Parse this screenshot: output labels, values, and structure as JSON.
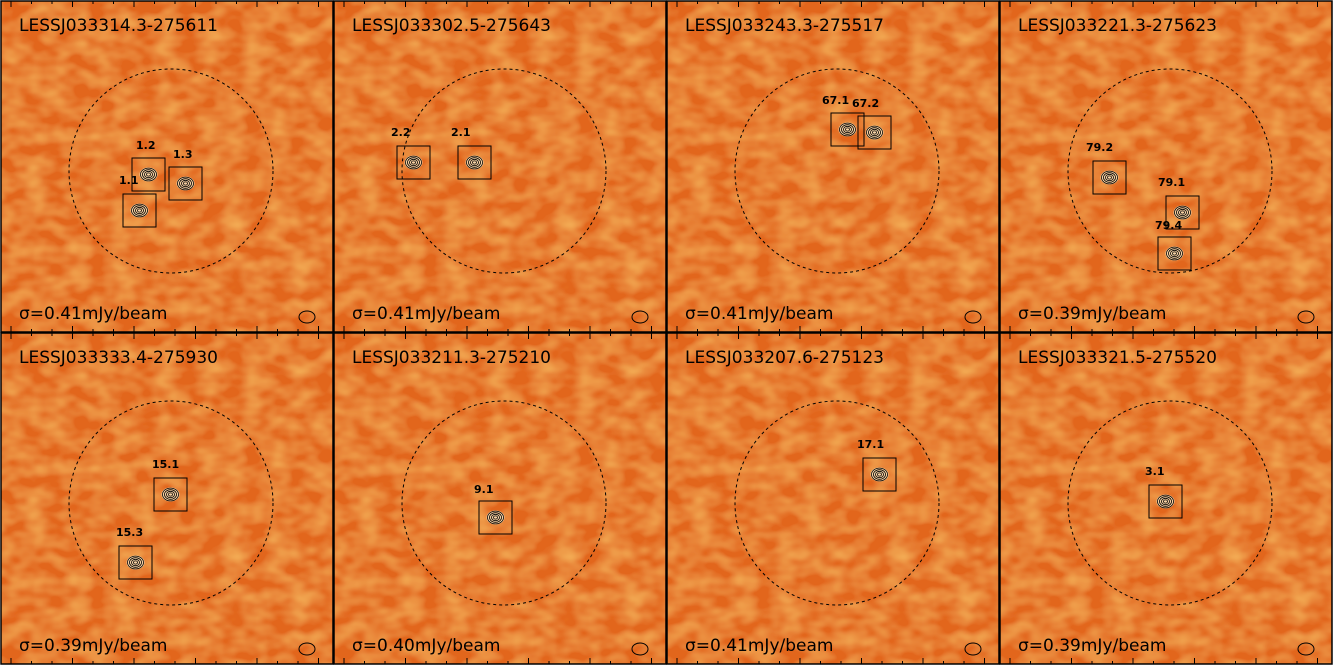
{
  "panels": [
    {
      "title": "LESSJ033314.3-275611",
      "sigma": "σ=0.41mJy/beam",
      "sources": [
        "1.2",
        "1.3",
        "1.1"
      ]
    },
    {
      "title": "LESSJ033302.5-275643",
      "sigma": "σ=0.41mJy/beam",
      "sources": [
        "2.2",
        "2.1"
      ]
    },
    {
      "title": "LESSJ033243.3-275517",
      "sigma": "σ=0.41mJy/beam",
      "sources": [
        "67.1",
        "67.2"
      ]
    },
    {
      "title": "LESSJ033221.3-275623",
      "sigma": "σ=0.39mJy/beam",
      "sources": [
        "79.2",
        "79.1",
        "79.4"
      ]
    },
    {
      "title": "LESSJ033333.4-275930",
      "sigma": "σ=0.39mJy/beam",
      "sources": [
        "15.1",
        "15.3"
      ]
    },
    {
      "title": "LESSJ033211.3-275210",
      "sigma": "σ=0.40mJy/beam",
      "sources": [
        "9.1"
      ]
    },
    {
      "title": "LESSJ033207.6-275123",
      "sigma": "σ=0.41mJy/beam",
      "sources": [
        "17.1"
      ]
    },
    {
      "title": "LESSJ033321.5-275520",
      "sigma": "σ=0.39mJy/beam",
      "sources": [
        "3.1"
      ]
    }
  ]
}
